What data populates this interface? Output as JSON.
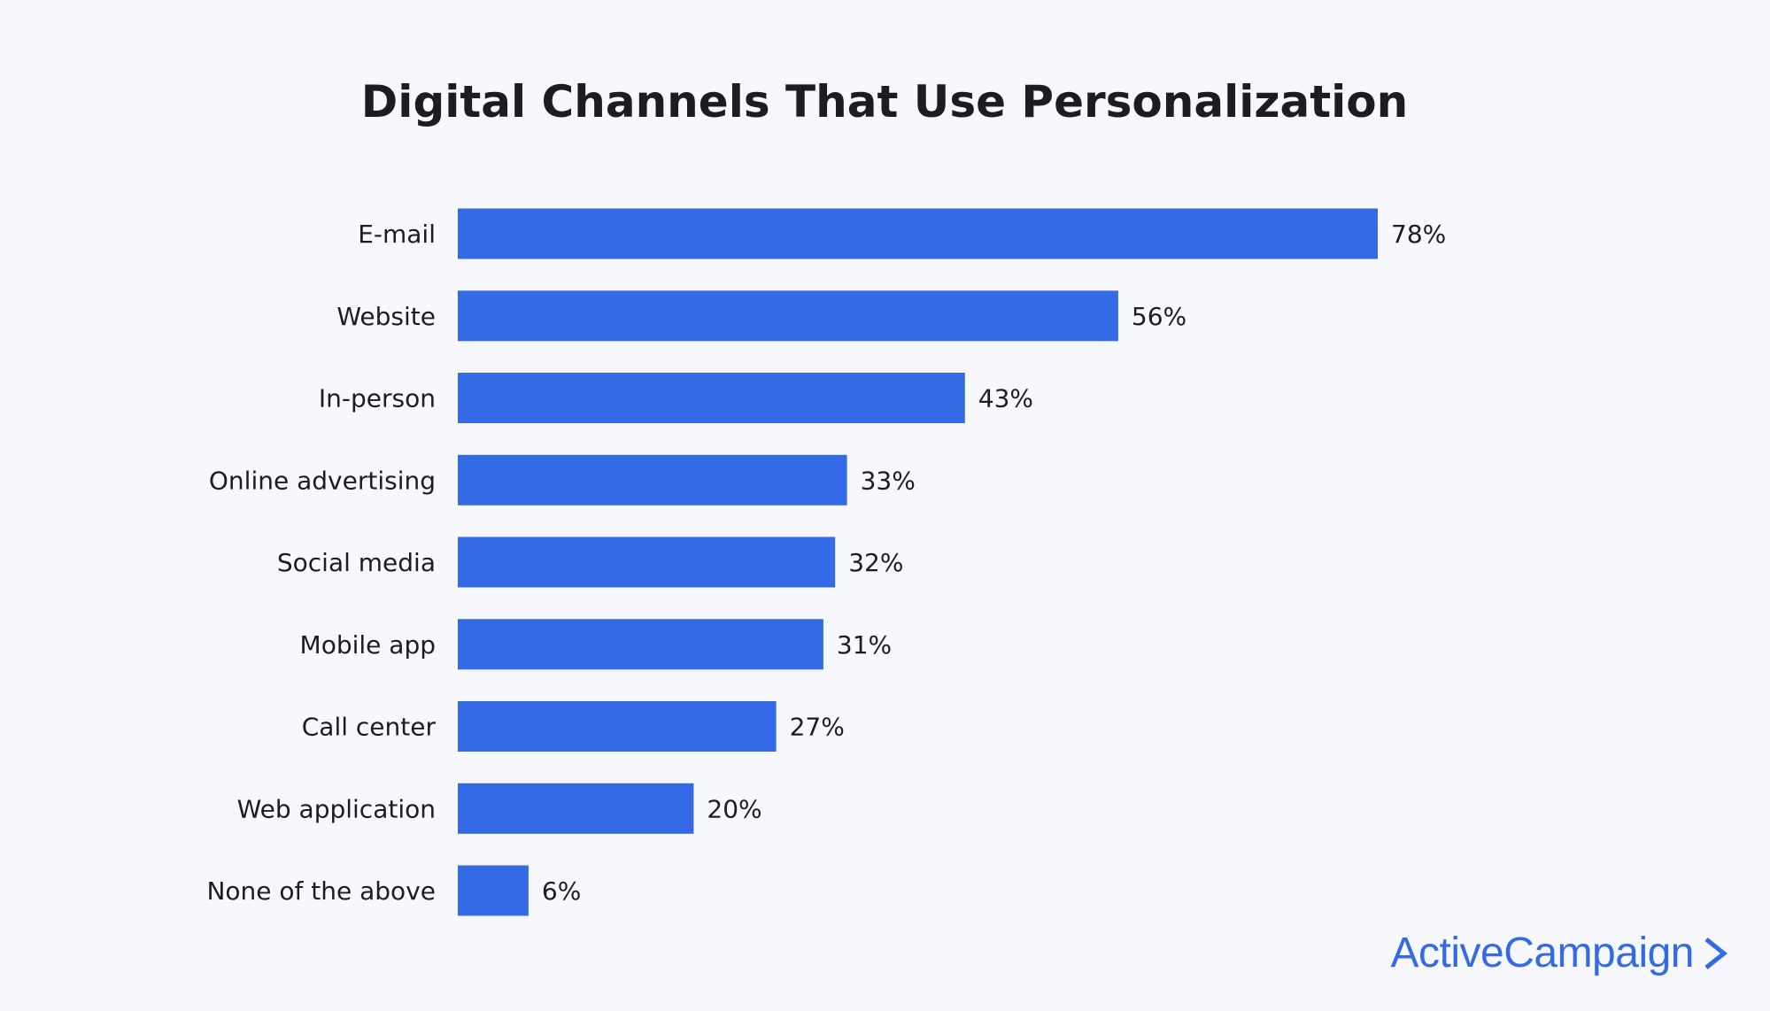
{
  "chart_data": {
    "type": "bar",
    "orientation": "horizontal",
    "title": "Digital Channels That Use Personalization",
    "categories": [
      "E-mail",
      "Website",
      "In-person",
      "Online advertising",
      "Social media",
      "Mobile app",
      "Call center",
      "Web application",
      "None of the above"
    ],
    "values": [
      78,
      56,
      43,
      33,
      32,
      31,
      27,
      20,
      6
    ],
    "value_labels": [
      "78%",
      "56%",
      "43%",
      "33%",
      "32%",
      "31%",
      "27%",
      "20%",
      "6%"
    ],
    "bar_color": "#356ae6",
    "grid": false,
    "axes_visible": false
  },
  "brand": {
    "name": "ActiveCampaign",
    "icon": "chevron-right-icon",
    "color": "#356ae6"
  },
  "background_color": "#f7f8fd"
}
